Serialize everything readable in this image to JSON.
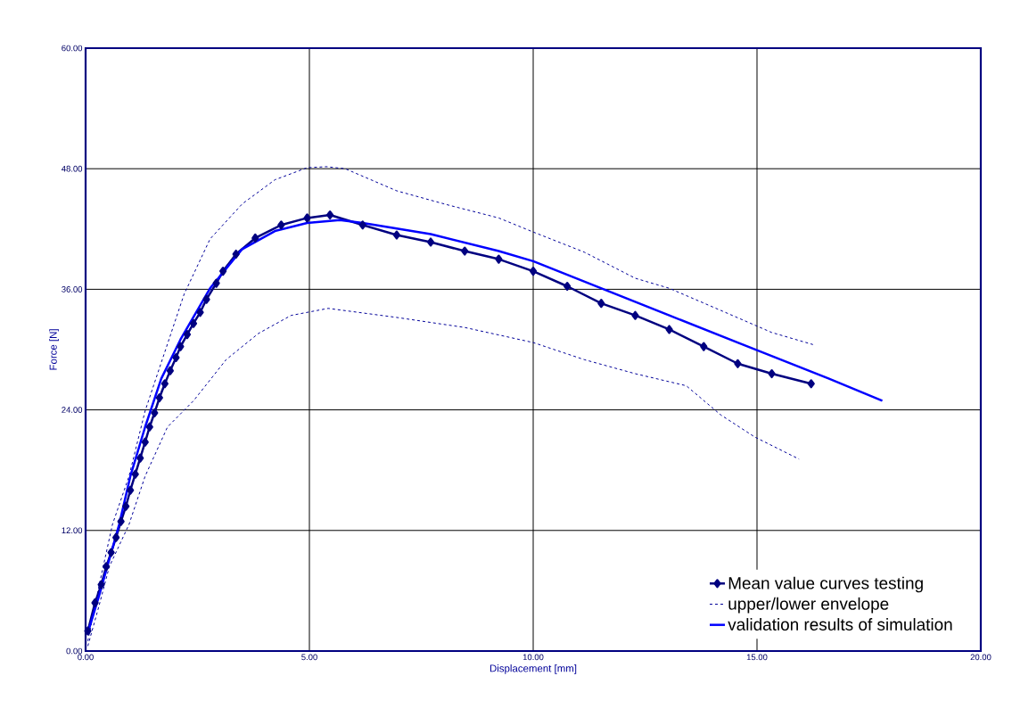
{
  "chart_data": {
    "type": "line",
    "xlabel": "Displacement [mm]",
    "ylabel": "Force [N]",
    "xlim": [
      0,
      20
    ],
    "ylim": [
      0,
      60
    ],
    "xticks": [
      {
        "value": 0,
        "label": "0.00"
      },
      {
        "value": 5,
        "label": "5.00"
      },
      {
        "value": 10,
        "label": "10.00"
      },
      {
        "value": 15,
        "label": "15.00"
      },
      {
        "value": 20,
        "label": "20.00"
      }
    ],
    "yticks": [
      {
        "value": 0,
        "label": "0.00"
      },
      {
        "value": 12,
        "label": "12.00"
      },
      {
        "value": 24,
        "label": "24.00"
      },
      {
        "value": 36,
        "label": "36.00"
      },
      {
        "value": 48,
        "label": "48.00"
      },
      {
        "value": 60,
        "label": "60.00"
      }
    ],
    "grid": true,
    "legend": "bottom right",
    "series": [
      {
        "name": "Mean value curves testing",
        "color": "#000080",
        "marker": "diamond",
        "line_style": "solid",
        "x": [
          0.05,
          0.21,
          0.35,
          0.46,
          0.57,
          0.68,
          0.79,
          0.9,
          1.0,
          1.11,
          1.22,
          1.33,
          1.43,
          1.54,
          1.65,
          1.77,
          1.89,
          2.02,
          2.12,
          2.27,
          2.41,
          2.56,
          2.7,
          2.92,
          3.07,
          3.36,
          3.79,
          4.37,
          4.95,
          5.46,
          6.19,
          6.95,
          7.71,
          8.47,
          9.23,
          10.0,
          10.76,
          11.52,
          12.28,
          13.04,
          13.81,
          14.57,
          15.33,
          16.21
        ],
        "values": [
          2.0,
          4.8,
          6.6,
          8.4,
          9.8,
          11.3,
          12.9,
          14.4,
          16.0,
          17.6,
          19.2,
          20.8,
          22.3,
          23.7,
          25.2,
          26.6,
          27.9,
          29.2,
          30.3,
          31.5,
          32.6,
          33.7,
          35.0,
          36.6,
          37.8,
          39.5,
          41.1,
          42.4,
          43.1,
          43.4,
          42.4,
          41.4,
          40.7,
          39.8,
          39.0,
          37.8,
          36.3,
          34.6,
          33.4,
          32.0,
          30.3,
          28.6,
          27.6,
          26.6
        ]
      },
      {
        "name": "upper/lower envelope",
        "color": "#000099",
        "marker": "none",
        "line_style": "dashed",
        "x": [
          0.05,
          0.3,
          0.6,
          0.97,
          1.33,
          1.69,
          2.2,
          2.78,
          3.5,
          4.23,
          4.95,
          5.38,
          5.8,
          6.95,
          8.09,
          9.23,
          10.0,
          11.14,
          12.28,
          13.04,
          14.19,
          15.33,
          16.25
        ],
        "values": [
          1.0,
          6.5,
          12.6,
          17.4,
          23.9,
          28.7,
          35.5,
          41.0,
          44.5,
          46.9,
          48.1,
          48.2,
          48.0,
          45.8,
          44.4,
          43.1,
          41.7,
          39.7,
          37.1,
          36.1,
          33.9,
          31.7,
          30.5
        ]
      },
      {
        "color": "#000099",
        "marker": "none",
        "line_style": "dashed",
        "x": [
          0.05,
          0.3,
          0.53,
          0.97,
          1.33,
          1.83,
          2.41,
          3.14,
          3.86,
          4.59,
          5.42,
          6.95,
          8.47,
          10.0,
          11.14,
          12.28,
          13.42,
          14.19,
          14.95,
          15.94
        ],
        "values": [
          0.5,
          4.5,
          8.4,
          12.6,
          17.4,
          22.3,
          24.9,
          29.0,
          31.6,
          33.4,
          34.1,
          33.2,
          32.2,
          30.7,
          29.0,
          27.6,
          26.4,
          23.5,
          21.3,
          19.1
        ]
      },
      {
        "name": "validation results of simulation",
        "color": "#0000ff",
        "marker": "none",
        "line_style": "solid",
        "x": [
          0.05,
          0.3,
          0.75,
          1.0,
          1.33,
          1.69,
          2.12,
          2.78,
          3.5,
          4.23,
          4.95,
          5.68,
          6.19,
          7.71,
          9.23,
          10.0,
          11.52,
          13.04,
          14.57,
          16.61,
          17.8
        ],
        "values": [
          1.8,
          5.5,
          12.6,
          17.4,
          22.3,
          27.1,
          31.0,
          36.1,
          40.0,
          41.8,
          42.6,
          42.9,
          42.6,
          41.5,
          39.8,
          38.8,
          36.1,
          33.4,
          30.7,
          27.1,
          24.9
        ]
      }
    ]
  }
}
